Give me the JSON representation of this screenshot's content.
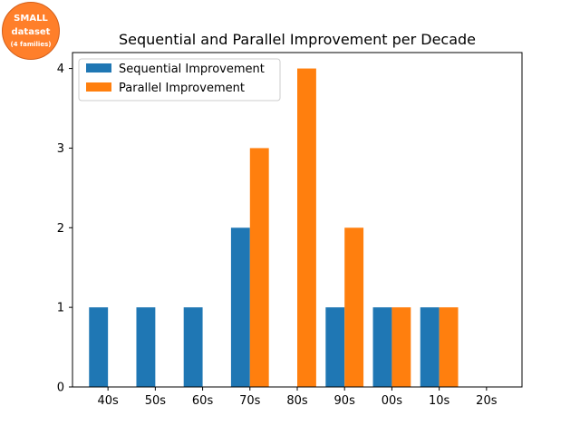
{
  "badge": {
    "line1": "SMALL",
    "line2": "dataset",
    "line3": "(4 families)",
    "color": "#ff7f2a"
  },
  "chart_data": {
    "type": "bar",
    "title": "Sequential and Parallel Improvement per Decade",
    "xlabel": "",
    "ylabel": "",
    "categories": [
      "40s",
      "50s",
      "60s",
      "70s",
      "80s",
      "90s",
      "00s",
      "10s",
      "20s"
    ],
    "series": [
      {
        "name": "Sequential Improvement",
        "values": [
          1,
          1,
          1,
          2,
          0,
          1,
          1,
          1,
          0
        ],
        "color": "#1f77b4"
      },
      {
        "name": "Parallel Improvement",
        "values": [
          0,
          0,
          0,
          3,
          4,
          2,
          1,
          1,
          0
        ],
        "color": "#ff7f0e"
      }
    ],
    "ylim": [
      0,
      4.2
    ],
    "yticks": [
      0,
      1,
      2,
      3,
      4
    ],
    "grid": false,
    "legend_position": "upper-left"
  }
}
